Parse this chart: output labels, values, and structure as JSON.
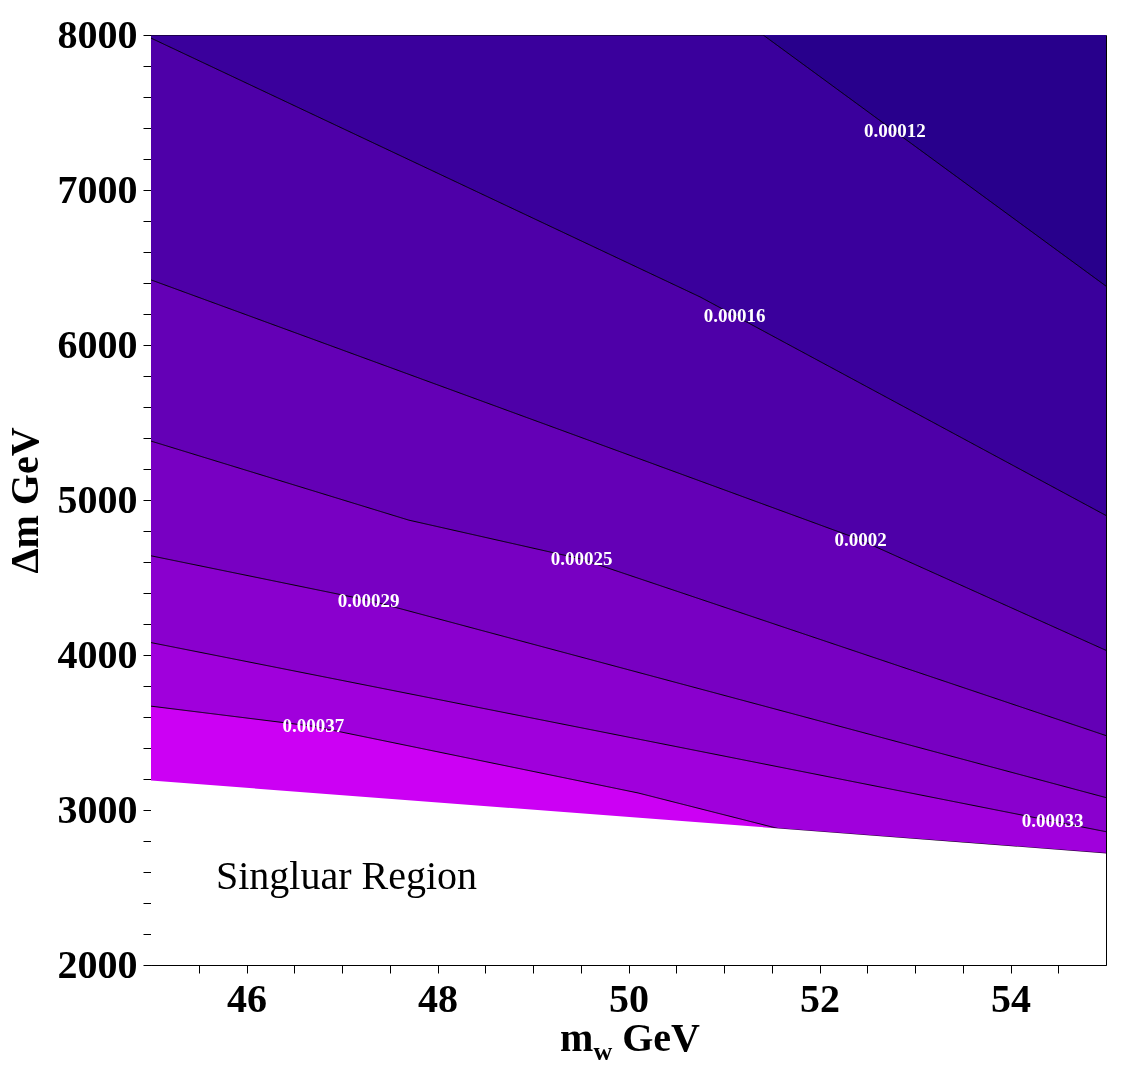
{
  "chart_data": {
    "type": "area",
    "xlabel": "m$_{w}$ GeV",
    "ylabel": "Δm GeV",
    "xlim": [
      45,
      55
    ],
    "ylim": [
      2000,
      8000
    ],
    "xticks": [
      {
        "value": 45.5,
        "label": null
      },
      46,
      {
        "value": 46.5,
        "label": null
      },
      {
        "value": 47,
        "label": null
      },
      {
        "value": 47.5,
        "label": null
      },
      48,
      {
        "value": 48.5,
        "label": null
      },
      {
        "value": 49,
        "label": null
      },
      {
        "value": 49.5,
        "label": null
      },
      50,
      {
        "value": 50.5,
        "label": null
      },
      {
        "value": 51,
        "label": null
      },
      {
        "value": 51.5,
        "label": null
      },
      52,
      {
        "value": 52.5,
        "label": null
      },
      {
        "value": 53,
        "label": null
      },
      {
        "value": 53.5,
        "label": null
      },
      54,
      {
        "value": 54.5,
        "label": null
      }
    ],
    "yticks": [
      2000,
      {
        "value": 2200,
        "label": null
      },
      {
        "value": 2400,
        "label": null
      },
      {
        "value": 2600,
        "label": null
      },
      {
        "value": 2800,
        "label": null
      },
      3000,
      {
        "value": 3200,
        "label": null
      },
      {
        "value": 3400,
        "label": null
      },
      {
        "value": 3600,
        "label": null
      },
      {
        "value": 3800,
        "label": null
      },
      4000,
      {
        "value": 4200,
        "label": null
      },
      {
        "value": 4400,
        "label": null
      },
      {
        "value": 4600,
        "label": null
      },
      {
        "value": 4800,
        "label": null
      },
      5000,
      {
        "value": 5200,
        "label": null
      },
      {
        "value": 5400,
        "label": null
      },
      {
        "value": 5600,
        "label": null
      },
      {
        "value": 5800,
        "label": null
      },
      6000,
      {
        "value": 6200,
        "label": null
      },
      {
        "value": 6400,
        "label": null
      },
      {
        "value": 6600,
        "label": null
      },
      {
        "value": 6800,
        "label": null
      },
      7000,
      {
        "value": 7200,
        "label": null
      },
      {
        "value": 7400,
        "label": null
      },
      {
        "value": 7600,
        "label": null
      },
      {
        "value": 7800,
        "label": null
      },
      8000
    ],
    "grid": false,
    "series": [
      {
        "type": "area",
        "color": "#28008c",
        "x": [
          51.41,
          55
        ],
        "values": [
          8000,
          8000
        ]
      },
      {
        "type": "area",
        "color": "#3a009c",
        "line_style": "solid",
        "x": [
          45,
          51.41,
          55
        ],
        "values": [
          8000,
          8000,
          6380
        ]
      },
      {
        "type": "area",
        "color": "#4e00a8",
        "line_style": "solid",
        "x": [
          45,
          50.75,
          55
        ],
        "values": [
          7980,
          6310,
          4900
        ]
      },
      {
        "type": "area",
        "color": "#6400b6",
        "line_style": "solid",
        "x": [
          45,
          52.4,
          55
        ],
        "values": [
          6420,
          4750,
          4030
        ]
      },
      {
        "type": "area",
        "color": "#7800c2",
        "line_style": "solid",
        "x": [
          45,
          47.7,
          49.5,
          55
        ],
        "values": [
          5380,
          4870,
          4620,
          3480
        ]
      },
      {
        "type": "area",
        "color": "#8a00ce",
        "line_style": "solid",
        "x": [
          45,
          47.3,
          55
        ],
        "values": [
          4640,
          4350,
          3080
        ]
      },
      {
        "type": "area",
        "color": "#a000dc",
        "line_style": "solid",
        "x": [
          45,
          55
        ],
        "values": [
          4080,
          2860
        ]
      },
      {
        "type": "area",
        "color": "#cc00f4",
        "line_style": "solid",
        "x": [
          45,
          46.7,
          50.1,
          51.57,
          55
        ],
        "values": [
          3670,
          3540,
          3110,
          2880,
          2720
        ]
      },
      {
        "type": "area",
        "color": "#ffffff",
        "x": [
          45,
          55
        ],
        "values": [
          3190,
          2720
        ]
      }
    ],
    "annotations": [
      {
        "text": "0.00012",
        "x": 52.79,
        "y": 7380
      },
      {
        "text": "0.00016",
        "x": 51.11,
        "y": 6190
      },
      {
        "text": "0.0002",
        "x": 52.43,
        "y": 4740
      },
      {
        "text": "0.00025",
        "x": 49.51,
        "y": 4620
      },
      {
        "text": "0.00029",
        "x": 47.28,
        "y": 4350
      },
      {
        "text": "0.00033",
        "x": 54.44,
        "y": 2930
      },
      {
        "text": "0.00037",
        "x": 46.7,
        "y": 3540
      },
      "Singluar Region"
    ]
  }
}
